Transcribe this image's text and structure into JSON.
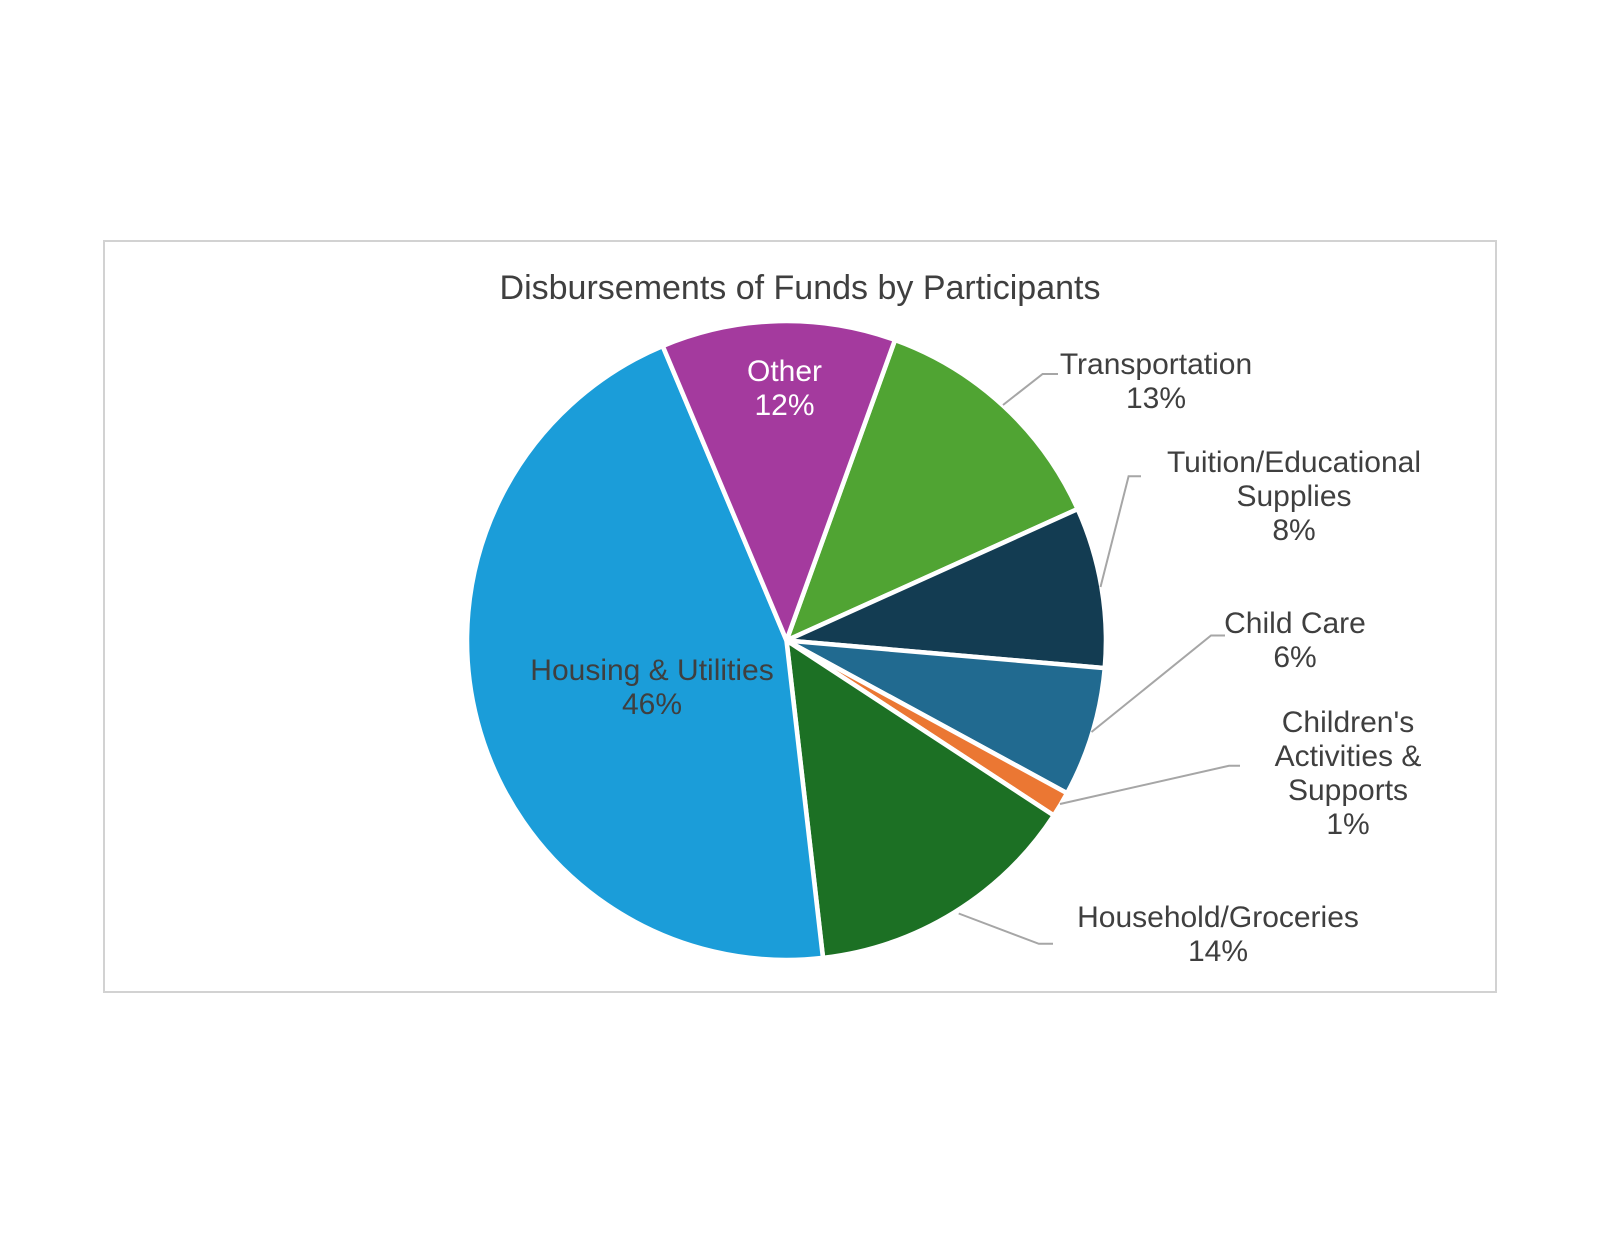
{
  "page": {
    "background": "#FFFFFF"
  },
  "chart_data": {
    "type": "pie",
    "title": "Disbursements of Funds by Participants",
    "legend_position": "none",
    "data_labels": "category name and percent",
    "slices": [
      {
        "key": "transportation",
        "label": "Transportation",
        "value": 13,
        "percent_label": "13%",
        "color": "#50A433",
        "label_lines": [
          "Transportation",
          "13%"
        ],
        "label_placement": "outside",
        "start_deg": 19.85,
        "sweep_deg": 45.85,
        "text_color": "#3F3F3F"
      },
      {
        "key": "tuition",
        "label": "Tuition/Educational Supplies",
        "value": 8,
        "percent_label": "8%",
        "color": "#133C52",
        "label_lines": [
          "Tuition/Educational",
          "Supplies",
          "8%"
        ],
        "label_placement": "outside",
        "start_deg": 65.7,
        "sweep_deg": 29.26,
        "text_color": "#3F3F3F"
      },
      {
        "key": "child-care",
        "label": "Child Care",
        "value": 6,
        "percent_label": "6%",
        "color": "#216A90",
        "label_lines": [
          "Child Care",
          "6%"
        ],
        "label_placement": "outside",
        "start_deg": 94.96,
        "sweep_deg": 23.6,
        "text_color": "#3F3F3F"
      },
      {
        "key": "childrens-activities",
        "label": "Children's Activities & Supports",
        "value": 1,
        "percent_label": "1%",
        "color": "#EB7733",
        "label_lines": [
          "Children's",
          "Activities &",
          "Supports",
          "1%"
        ],
        "label_placement": "outside",
        "start_deg": 118.56,
        "sweep_deg": 4.65,
        "text_color": "#3F3F3F"
      },
      {
        "key": "household-groceries",
        "label": "Household/Groceries",
        "value": 14,
        "percent_label": "14%",
        "color": "#1C7024",
        "label_lines": [
          "Household/Groceries",
          "14%"
        ],
        "label_placement": "outside",
        "start_deg": 123.21,
        "sweep_deg": 50.23,
        "text_color": "#3F3F3F"
      },
      {
        "key": "housing-utilities",
        "label": "Housing & Utilities",
        "value": 46,
        "percent_label": "46%",
        "color": "#1B9DD9",
        "label_lines": [
          "Housing & Utilities",
          "46%"
        ],
        "label_placement": "inside",
        "start_deg": 173.44,
        "sweep_deg": 163.76,
        "text_color": "#3F3F3F"
      },
      {
        "key": "other",
        "label": "Other",
        "value": 12,
        "percent_label": "12%",
        "color": "#A43A9E",
        "label_lines": [
          "Other",
          "12%"
        ],
        "label_placement": "inside",
        "start_deg": 337.2,
        "sweep_deg": 42.65,
        "text_color": "#FFFFFF"
      }
    ],
    "colors": {
      "leader_line": "#A6A6A6",
      "title_text": "#3F3F3F",
      "chart_border": "#D2D2D2",
      "slice_separator": "#FFFFFF"
    }
  }
}
